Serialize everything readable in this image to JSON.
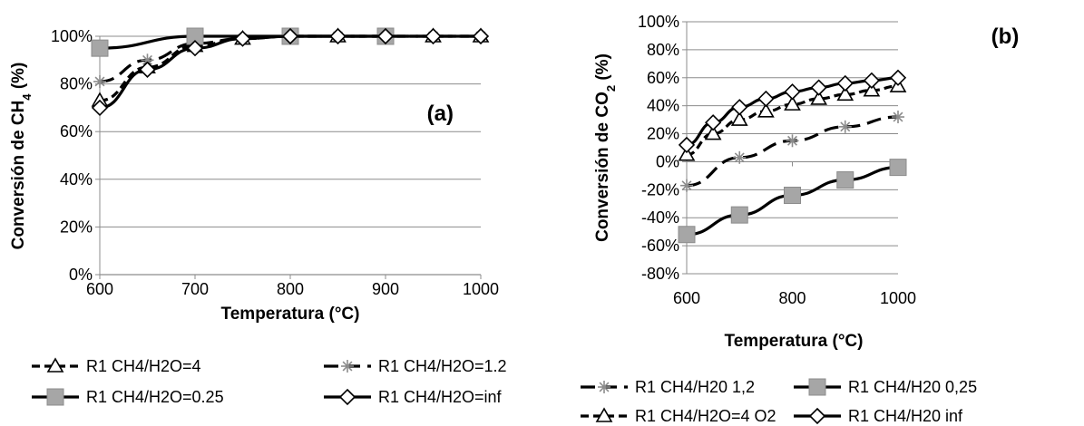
{
  "chart_data": [
    {
      "type": "line",
      "panel_label": "(a)",
      "xlabel": "Temperatura (°C)",
      "ylabel": "Conversión de CH",
      "ylabel_sub": "4",
      "ylabel_suffix": " (%)",
      "xlim": [
        600,
        1000
      ],
      "ylim": [
        0,
        100
      ],
      "xticks": [
        "600",
        "700",
        "800",
        "900",
        "1000"
      ],
      "yticks": [
        "0%",
        "20%",
        "40%",
        "60%",
        "80%",
        "100%"
      ],
      "grid": "horizontal",
      "legend_position": "bottom",
      "series": [
        {
          "name": "R1 CH4/H2O=4",
          "marker": "triangle",
          "line": "dashed",
          "x": [
            600,
            650,
            700,
            750,
            800,
            850,
            900,
            950,
            1000
          ],
          "y": [
            73,
            87,
            96,
            99,
            100,
            100,
            100,
            100,
            100
          ]
        },
        {
          "name": "R1 CH4/H2O=1.2",
          "marker": "asterisk",
          "line": "long-dash",
          "x": [
            600,
            650,
            700,
            750,
            800,
            850,
            900,
            950,
            1000
          ],
          "y": [
            81,
            90,
            97,
            99,
            100,
            100,
            100,
            100,
            100
          ]
        },
        {
          "name": "R1 CH4/H2O=0.25",
          "marker": "square",
          "line": "solid",
          "x": [
            600,
            700,
            800,
            900
          ],
          "y": [
            95,
            100,
            100,
            100
          ]
        },
        {
          "name": "R1 CH4/H2O=inf",
          "marker": "diamond",
          "line": "solid",
          "x": [
            600,
            650,
            700,
            750,
            800,
            850,
            900,
            950,
            1000
          ],
          "y": [
            70,
            86,
            95,
            99,
            100,
            100,
            100,
            100,
            100
          ]
        }
      ]
    },
    {
      "type": "line",
      "panel_label": "(b)",
      "xlabel": "Temperatura (°C)",
      "ylabel": "Conversión de CO",
      "ylabel_sub": "2",
      "ylabel_suffix": " (%)",
      "xlim": [
        600,
        1000
      ],
      "ylim": [
        -80,
        100
      ],
      "xticks": [
        "600",
        "800",
        "1000"
      ],
      "yticks": [
        "-80%",
        "-60%",
        "-40%",
        "-20%",
        "0%",
        "20%",
        "40%",
        "60%",
        "80%",
        "100%"
      ],
      "grid": "horizontal",
      "legend_position": "bottom",
      "series": [
        {
          "name": "R1 CH4/H20 1,2",
          "marker": "asterisk",
          "line": "long-dash",
          "x": [
            600,
            700,
            800,
            900,
            1000
          ],
          "y": [
            -17,
            3,
            15,
            25,
            32
          ]
        },
        {
          "name": "R1 CH4/H20 0,25",
          "marker": "square",
          "line": "solid",
          "x": [
            600,
            700,
            800,
            900,
            1000
          ],
          "y": [
            -52,
            -38,
            -24,
            -13,
            -4
          ]
        },
        {
          "name": "R1 CH4/H2O=4 O2",
          "marker": "triangle",
          "line": "dashed",
          "x": [
            600,
            650,
            700,
            750,
            800,
            850,
            900,
            950,
            1000
          ],
          "y": [
            5,
            20,
            30,
            36,
            41,
            45,
            48,
            51,
            54
          ]
        },
        {
          "name": "R1 CH4/H20 inf",
          "marker": "diamond",
          "line": "solid",
          "x": [
            600,
            650,
            700,
            750,
            800,
            850,
            900,
            950,
            1000
          ],
          "y": [
            12,
            28,
            39,
            45,
            50,
            53,
            56,
            58,
            60
          ]
        }
      ]
    }
  ]
}
